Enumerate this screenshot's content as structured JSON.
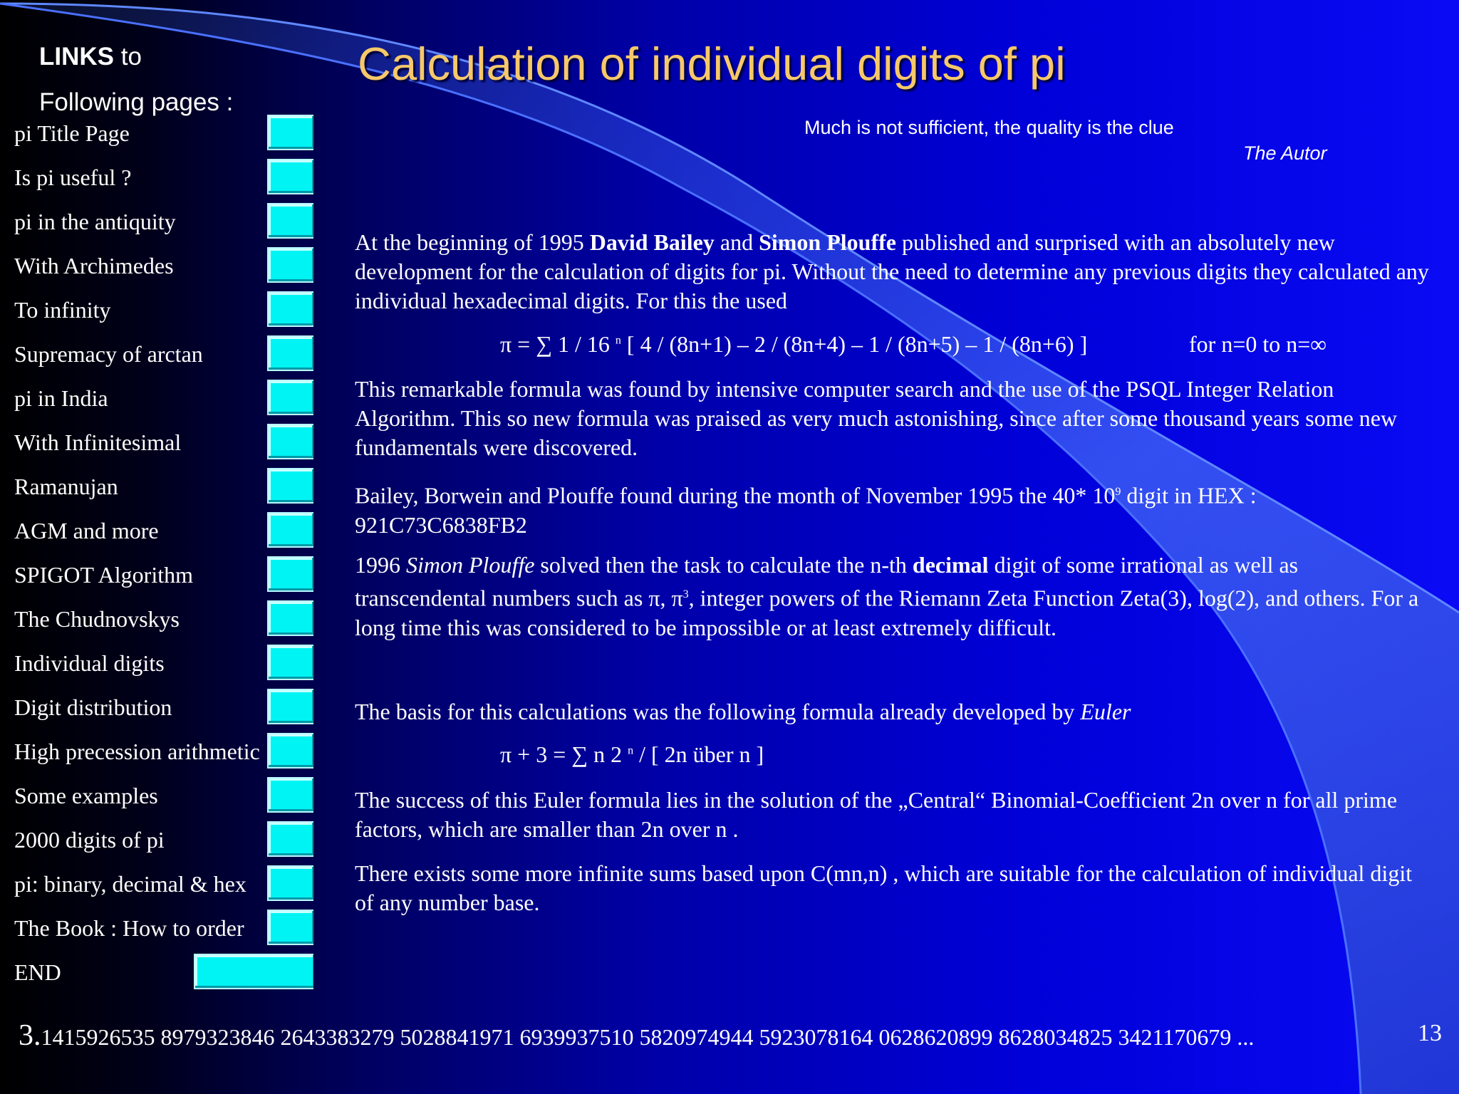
{
  "sidebar": {
    "heading_bold": "LINKS",
    "heading_rest": " to",
    "heading_line2": "Following pages :",
    "items": [
      {
        "label": "pi   Title Page"
      },
      {
        "label": "Is pi useful ?"
      },
      {
        "label": "pi in the antiquity"
      },
      {
        "label": "With Archimedes"
      },
      {
        "label": "To infinity"
      },
      {
        "label": "Supremacy of arctan"
      },
      {
        "label": "pi in India"
      },
      {
        "label": "With Infinitesimal"
      },
      {
        "label": "Ramanujan"
      },
      {
        "label": "AGM and more"
      },
      {
        "label": "SPIGOT Algorithm"
      },
      {
        "label": "The Chudnovskys"
      },
      {
        "label": "Individual digits"
      },
      {
        "label": "Digit distribution"
      },
      {
        "label": "High precession arithmetic"
      },
      {
        "label": "Some examples"
      },
      {
        "label": "2000 digits of pi"
      },
      {
        "label": "pi: binary, decimal & hex"
      },
      {
        "label": "The Book : How to order"
      },
      {
        "label": "END"
      }
    ]
  },
  "title": "Calculation of individual digits of pi",
  "quote": "Much is not sufficient, the quality is the clue",
  "quote_author": "The Autor",
  "p1": {
    "a": "At the beginning of 1995 ",
    "b": "David Bailey",
    "c": " and ",
    "d": "Simon Plouffe",
    "e": " published and surprised with an absolutely new development for the calculation of digits for pi. Without the need to determine any previous digits they calculated any individual hexadecimal digits. For this the used"
  },
  "formula1": {
    "lhs": "π = ∑ 1 / 16 ",
    "sup": "n",
    "rhs": " [ 4 / (8n+1) – 2 / (8n+4) – 1 / (8n+5) – 1 / (8n+6) ]",
    "range": "for  n=0  to  n=∞"
  },
  "p2": " This remarkable formula was found by intensive computer search and the use of the PSQL Integer Relation Algorithm. This so new formula was praised as very much astonishing, since after some thousand years some new fundamentals were discovered.",
  "p3": {
    "a": "Bailey, Borwein and Plouffe  found during the month of November 1995 the 40* 10",
    "sup": "9",
    "b": "  digit in HEX  :",
    "c": "921C73C6838FB2"
  },
  "p4": {
    "a": " 1996 ",
    "b": "Simon Plouffe",
    "c": " solved then the task to calculate the n-th ",
    "d": "decimal",
    "e": " digit of some irrational as well as transcendental  numbers such as  π, π",
    "sup": "3",
    "f": ", integer powers of the  Riemann Zeta Function Zeta(3), log(2), and others. For a long time this was considered to be impossible or at least extremely difficult."
  },
  "p5": {
    "a": "The basis for this calculations was the following formula already developed by ",
    "b": "Euler"
  },
  "formula2": {
    "lhs": "π + 3 = ∑ n 2 ",
    "sup": "n",
    "rhs": " / [ 2n über n ]"
  },
  "p6": "The success of this Euler formula lies in the solution of the „Central“ Binomial-Coefficient  2n over n  for all prime factors, which are smaller than 2n over n .",
  "p7": " There exists some more infinite sums based upon C(mn,n) ,  which are suitable for the calculation of individual digit of any number base.",
  "footer": {
    "pi_int": "3.",
    "pi_digits": "1415926535 8979323846 2643383279 5028841971 6939937510 5820974944 5923078164 0628620899 8628034825 3421170679  ...",
    "page_number": "13"
  }
}
